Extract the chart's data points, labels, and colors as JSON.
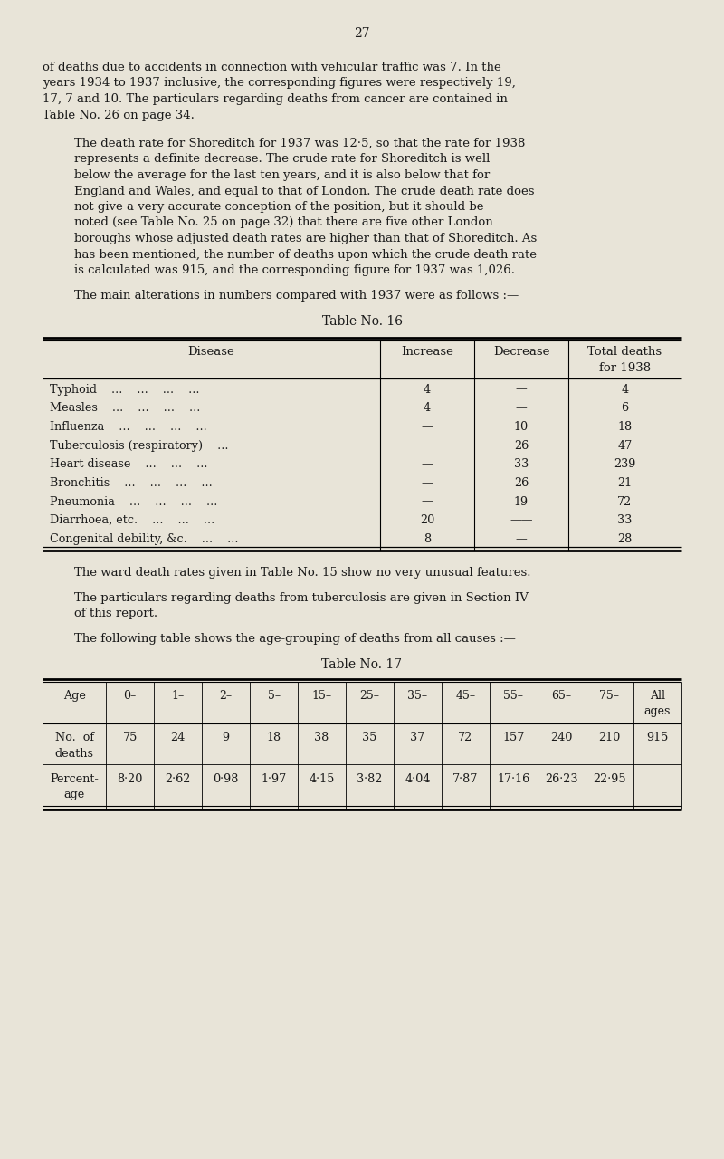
{
  "page_number": "27",
  "bg_color": "#e8e4d8",
  "text_color": "#1a1a1a",
  "paragraph1": "of deaths due to accidents in connection with vehicular traffic was 7.  In the years 1934 to 1937 inclusive, the corresponding figures were respectively 19, 17, 7 and 10.  The particulars regarding deaths from cancer are contained in Table No. 26 on page 34.",
  "paragraph2": "The death rate for Shoreditch for 1937 was 12·5, so that the rate for 1938 represents a definite decrease.  The crude rate for Shoreditch is well below the average for the last ten years, and it is also below that for England and Wales, and equal to that of London.  The crude death rate does not give a very accurate conception of the position, but it should be noted (see Table No. 25 on page 32) that there are five other London boroughs whose adjusted death rates are higher than that of Shoreditch.  As has been mentioned, the number of deaths upon which the crude death rate is calculated was 915, and the corresponding figure for 1937 was 1,026.",
  "paragraph3": "The main alterations in numbers compared with 1937 were as follows :—",
  "table16_title": "Table No. 16",
  "table16_rows": [
    [
      "Typhoid    ...    ...    ...    ...",
      "4",
      "—",
      "4"
    ],
    [
      "Measles    ...    ...    ...    ...",
      "4",
      "—",
      "6"
    ],
    [
      "Influenza    ...    ...    ...    ...",
      "—",
      "10",
      "18"
    ],
    [
      "Tuberculosis (respiratory)    ...",
      "—",
      "26",
      "47"
    ],
    [
      "Heart disease    ...    ...    ...",
      "—",
      "33",
      "239"
    ],
    [
      "Bronchitis    ...    ...    ...    ...",
      "—",
      "26",
      "21"
    ],
    [
      "Pneumonia    ...    ...    ...    ...",
      "—",
      "19",
      "72"
    ],
    [
      "Diarrhoea, etc.    ...    ...    ...",
      "20",
      "——",
      "33"
    ],
    [
      "Congenital debility, &c.    ...    ...",
      "8",
      "—",
      "28"
    ]
  ],
  "paragraph4": "The ward death rates given in Table No. 15 show no very unusual features.",
  "paragraph5": "The particulars regarding deaths from tuberculosis are given in Section IV of this report.",
  "paragraph6": "The following table shows the age-grouping of deaths from all causes :—",
  "table17_title": "Table No. 17",
  "table17_ages": [
    "0–",
    "1–",
    "2–",
    "5–",
    "15–",
    "25–",
    "35–",
    "45–",
    "55–",
    "65–",
    "75–"
  ],
  "table17_deaths": [
    "75",
    "24",
    "9",
    "18",
    "38",
    "35",
    "37",
    "72",
    "157",
    "240",
    "210",
    "915"
  ],
  "table17_pcts": [
    "8·20",
    "2·62",
    "0·98",
    "1·97",
    "4·15",
    "3·82",
    "4·04",
    "7·87",
    "17·16",
    "26·23",
    "22·95",
    ""
  ]
}
